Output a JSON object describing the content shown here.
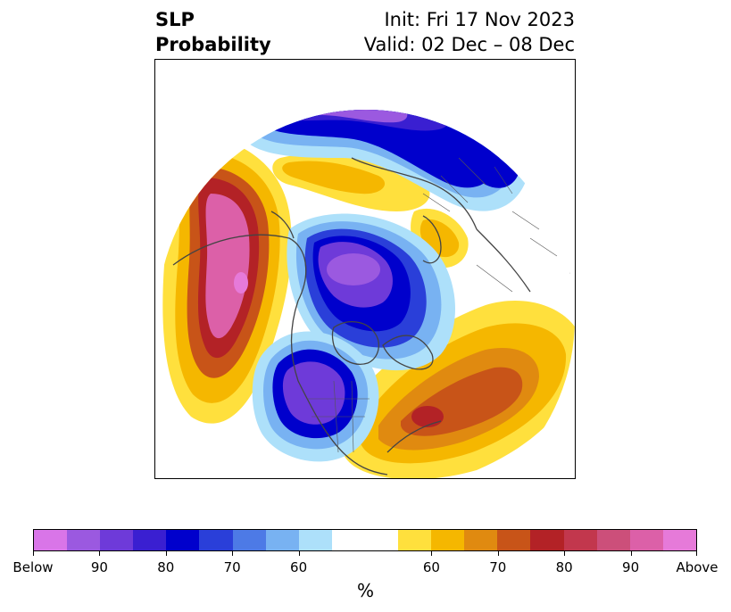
{
  "title": {
    "left_line1": "SLP",
    "left_line2": "Probability",
    "right_line1": "Init: Fri 17 Nov 2023",
    "right_line2": "Valid: 02 Dec – 08 Dec"
  },
  "colorbar": {
    "unit": "%",
    "colors": [
      "#d975e8",
      "#9b59e0",
      "#6e3ad9",
      "#3a1fd1",
      "#0000cc",
      "#2a3fd9",
      "#4d7ae6",
      "#78b2f2",
      "#ade0fa",
      "#ffffff",
      "#ffffff",
      "#ffe03d",
      "#f5b700",
      "#e08a10",
      "#c85418",
      "#b32226",
      "#c2374d",
      "#cc4f7a",
      "#dc60a8",
      "#e67ad9"
    ],
    "tick_labels": [
      "Below",
      "90",
      "80",
      "70",
      "60",
      "60",
      "70",
      "80",
      "90",
      "Above"
    ]
  },
  "legend_colors": {
    "below_strong": "#9b59e0",
    "below_mid": "#0000cc",
    "below_weak": "#78b2f2",
    "above_weak": "#ffe03d",
    "above_mid": "#e08a10",
    "above_strong": "#c2374d",
    "above_max": "#dc60a8"
  }
}
